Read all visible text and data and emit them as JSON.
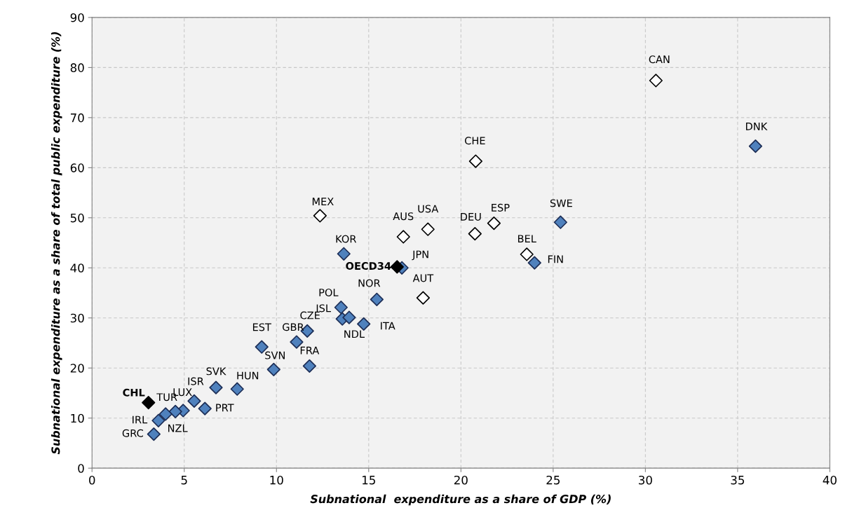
{
  "chart_data": {
    "type": "scatter",
    "xlabel": "Subnational  expenditure as a share of GDP (%)",
    "ylabel": "Subnational expenditure as a share of total public expenditure (%)",
    "xlim": [
      0,
      40
    ],
    "xticks": [
      0,
      5,
      10,
      15,
      20,
      25,
      30,
      35,
      40
    ],
    "ylim": [
      0,
      90
    ],
    "yticks": [
      0,
      10,
      20,
      30,
      40,
      50,
      60,
      70,
      80,
      90
    ],
    "grid": true,
    "marker": "diamond",
    "series": [
      {
        "color": "#4f81bd",
        "x": [
          35.97,
          25.4,
          23.99,
          13.65,
          16.8,
          15.44,
          13.5,
          13.57,
          13.94,
          14.73,
          11.67,
          11.09,
          9.2,
          11.79,
          9.85,
          7.87,
          6.72,
          5.54,
          6.12,
          4.94,
          4.52,
          3.99,
          3.6,
          3.35
        ],
        "values": [
          64.3,
          49.1,
          41.0,
          42.8,
          40.0,
          33.7,
          32.1,
          29.8,
          30.1,
          28.8,
          27.4,
          25.2,
          24.2,
          20.4,
          19.7,
          15.8,
          16.1,
          13.4,
          11.9,
          11.5,
          11.3,
          10.8,
          9.5,
          6.8
        ]
      },
      {
        "color": "#ffffff",
        "x": [
          30.57,
          20.8,
          12.36,
          16.88,
          18.21,
          20.76,
          21.79,
          23.57,
          17.95
        ],
        "values": [
          77.4,
          61.3,
          50.4,
          46.2,
          47.7,
          46.8,
          48.9,
          42.7,
          34.0
        ]
      },
      {
        "color": "#000000",
        "x": [
          16.54,
          3.06
        ],
        "values": [
          40.2,
          13.1
        ]
      }
    ],
    "annotations": [
      {
        "text": "DNK",
        "x": 35.97,
        "y": 64.3
      },
      {
        "text": "SWE",
        "x": 25.4,
        "y": 49.1
      },
      {
        "text": "FIN",
        "x": 23.99,
        "y": 41.0
      },
      {
        "text": "KOR",
        "x": 13.65,
        "y": 42.8
      },
      {
        "text": "JPN",
        "x": 16.8,
        "y": 40.0
      },
      {
        "text": "NOR",
        "x": 15.44,
        "y": 33.7
      },
      {
        "text": "POL",
        "x": 13.5,
        "y": 32.1
      },
      {
        "text": "ISL",
        "x": 13.57,
        "y": 29.8
      },
      {
        "text": "NDL",
        "x": 13.94,
        "y": 30.1
      },
      {
        "text": "ITA",
        "x": 14.73,
        "y": 28.8
      },
      {
        "text": "CZE",
        "x": 11.67,
        "y": 27.4
      },
      {
        "text": "GBR",
        "x": 11.09,
        "y": 25.2
      },
      {
        "text": "EST",
        "x": 9.2,
        "y": 24.2
      },
      {
        "text": "FRA",
        "x": 11.79,
        "y": 20.4
      },
      {
        "text": "SVN",
        "x": 9.85,
        "y": 19.7
      },
      {
        "text": "HUN",
        "x": 7.87,
        "y": 15.8
      },
      {
        "text": "SVK",
        "x": 6.72,
        "y": 16.1
      },
      {
        "text": "ISR",
        "x": 5.54,
        "y": 13.4
      },
      {
        "text": "PRT",
        "x": 6.12,
        "y": 11.9
      },
      {
        "text": "LUX",
        "x": 4.94,
        "y": 11.5
      },
      {
        "text": "NZL",
        "x": 4.52,
        "y": 11.3
      },
      {
        "text": "TUR",
        "x": 3.99,
        "y": 10.8
      },
      {
        "text": "IRL",
        "x": 3.6,
        "y": 9.5
      },
      {
        "text": "GRC",
        "x": 3.35,
        "y": 6.8
      },
      {
        "text": "CAN",
        "x": 30.57,
        "y": 77.4
      },
      {
        "text": "CHE",
        "x": 20.8,
        "y": 61.3
      },
      {
        "text": "MEX",
        "x": 12.36,
        "y": 50.4
      },
      {
        "text": "AUS",
        "x": 16.88,
        "y": 46.2
      },
      {
        "text": "USA",
        "x": 18.21,
        "y": 47.7
      },
      {
        "text": "DEU",
        "x": 20.76,
        "y": 46.8
      },
      {
        "text": "ESP",
        "x": 21.79,
        "y": 48.9
      },
      {
        "text": "BEL",
        "x": 23.57,
        "y": 42.7
      },
      {
        "text": "AUT",
        "x": 17.95,
        "y": 34.0
      },
      {
        "text": "OECD34",
        "x": 16.54,
        "y": 40.2
      },
      {
        "text": "CHL",
        "x": 3.06,
        "y": 13.1
      }
    ]
  }
}
